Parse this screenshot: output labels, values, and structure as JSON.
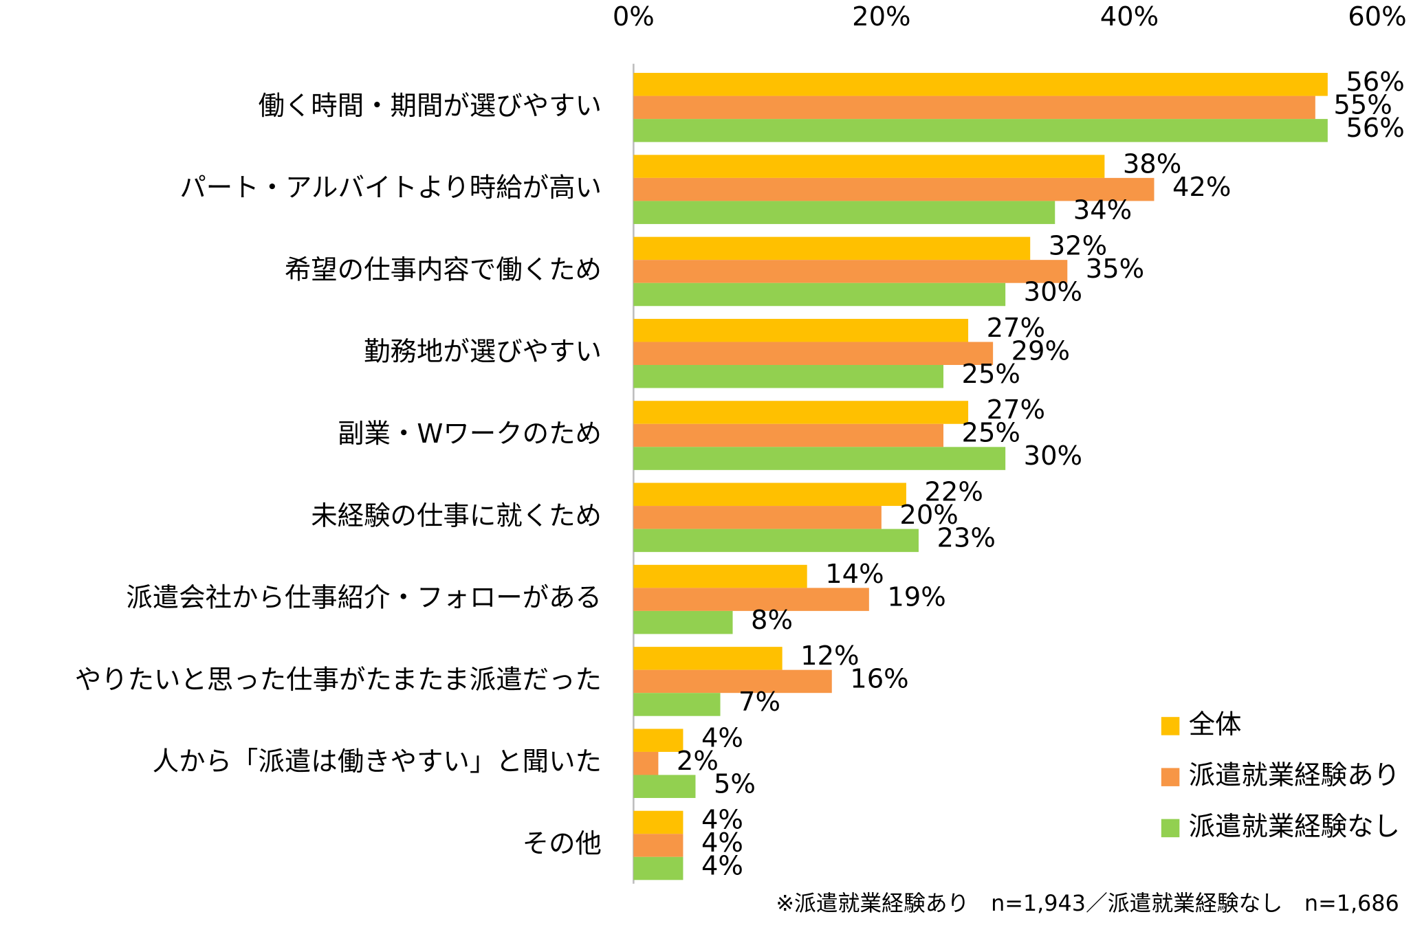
{
  "chart_data": {
    "type": "bar",
    "orientation": "horizontal",
    "categories": [
      "働く時間・期間が選びやすい",
      "パート・アルバイトより時給が高い",
      "希望の仕事内容で働くため",
      "勤務地が選びやすい",
      "副業・Wワークのため",
      "未経験の仕事に就くため",
      "派遣会社から仕事紹介・フォローがある",
      "やりたいと思った仕事がたまたま派遣だった",
      "人から「派遣は働きやすい」と聞いた",
      "その他"
    ],
    "series": [
      {
        "name": "全体",
        "color": "#FFC000",
        "values": [
          56,
          38,
          32,
          27,
          27,
          22,
          14,
          12,
          4,
          4
        ],
        "value_labels": [
          "56%",
          "38%",
          "32%",
          "27%",
          "27%",
          "22%",
          "14%",
          "12%",
          "4%",
          "4%"
        ]
      },
      {
        "name": "派遣就業経験あり",
        "color": "#F79646",
        "values": [
          55,
          42,
          35,
          29,
          25,
          20,
          19,
          16,
          2,
          4
        ],
        "value_labels": [
          "55%",
          "42%",
          "35%",
          "29%",
          "25%",
          "20%",
          "19%",
          "16%",
          "2%",
          "4%"
        ]
      },
      {
        "name": "派遣就業経験なし",
        "color": "#92D050",
        "values": [
          56,
          34,
          30,
          25,
          30,
          23,
          8,
          7,
          5,
          4
        ],
        "value_labels": [
          "56%",
          "34%",
          "30%",
          "25%",
          "30%",
          "23%",
          "8%",
          "7%",
          "5%",
          "4%"
        ]
      }
    ],
    "xlim": [
      0,
      60
    ],
    "xticks": [
      {
        "value": 0,
        "label": "0%"
      },
      {
        "value": 20,
        "label": "20%"
      },
      {
        "value": 40,
        "label": "40%"
      },
      {
        "value": 60,
        "label": "60%"
      }
    ],
    "grid": false,
    "legend": "right",
    "note": "※派遣就業経験あり　n=1,943／派遣就業経験なし　n=1,686"
  }
}
